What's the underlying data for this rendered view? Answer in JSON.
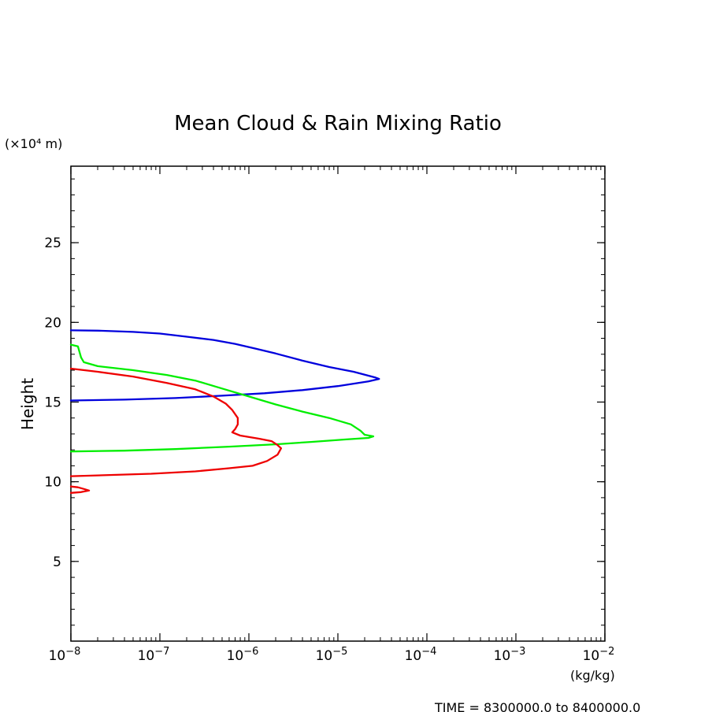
{
  "chart_data": {
    "type": "line",
    "title": "Mean Cloud & Rain Mixing Ratio",
    "ylabel": "Height",
    "y_unit_label": "(×10⁴ m)",
    "x_unit_label": "(kg/kg)",
    "x_scale": "log",
    "xlim": [
      1e-08,
      0.01
    ],
    "ylim": [
      0,
      29.8
    ],
    "x_ticks": [
      {
        "value": 1e-08,
        "base": "10",
        "exp": "−8"
      },
      {
        "value": 1e-07,
        "base": "10",
        "exp": "−7"
      },
      {
        "value": 1e-06,
        "base": "10",
        "exp": "−6"
      },
      {
        "value": 1e-05,
        "base": "10",
        "exp": "−5"
      },
      {
        "value": 0.0001,
        "base": "10",
        "exp": "−4"
      },
      {
        "value": 0.001,
        "base": "10",
        "exp": "−3"
      },
      {
        "value": 0.01,
        "base": "10",
        "exp": "−2"
      }
    ],
    "y_ticks": [
      5,
      10,
      15,
      20,
      25
    ],
    "grid": false,
    "footer": "TIME = 8300000.0 to 8400000.0",
    "series": [
      {
        "color": "#0000dd",
        "points": [
          [
            1e-08,
            19.5
          ],
          [
            2e-08,
            19.48
          ],
          [
            5e-08,
            19.4
          ],
          [
            1e-07,
            19.3
          ],
          [
            2e-07,
            19.1
          ],
          [
            4e-07,
            18.9
          ],
          [
            7e-07,
            18.65
          ],
          [
            1.2e-06,
            18.35
          ],
          [
            2e-06,
            18.05
          ],
          [
            4e-06,
            17.6
          ],
          [
            8e-06,
            17.2
          ],
          [
            1.5e-05,
            16.9
          ],
          [
            2.6e-05,
            16.55
          ],
          [
            2.9e-05,
            16.45
          ],
          [
            2.2e-05,
            16.3
          ],
          [
            1e-05,
            16.0
          ],
          [
            4e-06,
            15.75
          ],
          [
            1.5e-06,
            15.55
          ],
          [
            5e-07,
            15.4
          ],
          [
            1.5e-07,
            15.25
          ],
          [
            4e-08,
            15.15
          ],
          [
            1e-08,
            15.1
          ]
        ]
      },
      {
        "color": "#00ee00",
        "points": [
          [
            1e-08,
            18.6
          ],
          [
            1.2e-08,
            18.5
          ],
          [
            1.3e-08,
            17.8
          ],
          [
            1.4e-08,
            17.5
          ],
          [
            2e-08,
            17.25
          ],
          [
            5e-08,
            17.0
          ],
          [
            1.2e-07,
            16.7
          ],
          [
            2.5e-07,
            16.35
          ],
          [
            5e-07,
            15.85
          ],
          [
            1e-06,
            15.35
          ],
          [
            2e-06,
            14.85
          ],
          [
            4e-06,
            14.4
          ],
          [
            8e-06,
            14.0
          ],
          [
            1.4e-05,
            13.6
          ],
          [
            1.8e-05,
            13.2
          ],
          [
            2e-05,
            12.95
          ],
          [
            2.5e-05,
            12.85
          ],
          [
            2.2e-05,
            12.75
          ],
          [
            1.2e-05,
            12.65
          ],
          [
            5e-06,
            12.5
          ],
          [
            2e-06,
            12.35
          ],
          [
            6e-07,
            12.2
          ],
          [
            1.5e-07,
            12.05
          ],
          [
            4e-08,
            11.95
          ],
          [
            1e-08,
            11.9
          ]
        ]
      },
      {
        "color": "#ee0000",
        "points": [
          [
            1e-08,
            17.1
          ],
          [
            2e-08,
            16.9
          ],
          [
            5e-08,
            16.6
          ],
          [
            1.2e-07,
            16.2
          ],
          [
            2.5e-07,
            15.8
          ],
          [
            4e-07,
            15.35
          ],
          [
            5.5e-07,
            14.9
          ],
          [
            6.5e-07,
            14.5
          ],
          [
            7.5e-07,
            14.0
          ],
          [
            7.5e-07,
            13.6
          ],
          [
            7e-07,
            13.3
          ],
          [
            6.5e-07,
            13.1
          ],
          [
            8e-07,
            12.9
          ],
          [
            1.3e-06,
            12.7
          ],
          [
            1.8e-06,
            12.55
          ],
          [
            2.1e-06,
            12.3
          ],
          [
            2.3e-06,
            12.1
          ],
          [
            2.1e-06,
            11.7
          ],
          [
            1.6e-06,
            11.3
          ],
          [
            1.1e-06,
            11.0
          ],
          [
            6e-07,
            10.85
          ],
          [
            2.5e-07,
            10.65
          ],
          [
            8e-08,
            10.5
          ],
          [
            2e-08,
            10.4
          ],
          [
            1e-08,
            10.35
          ]
        ]
      },
      {
        "color": "#ee0000",
        "points": [
          [
            1e-08,
            9.7
          ],
          [
            1.2e-08,
            9.65
          ],
          [
            1.4e-08,
            9.55
          ],
          [
            1.6e-08,
            9.45
          ],
          [
            1.3e-08,
            9.35
          ],
          [
            1e-08,
            9.3
          ]
        ]
      }
    ]
  }
}
